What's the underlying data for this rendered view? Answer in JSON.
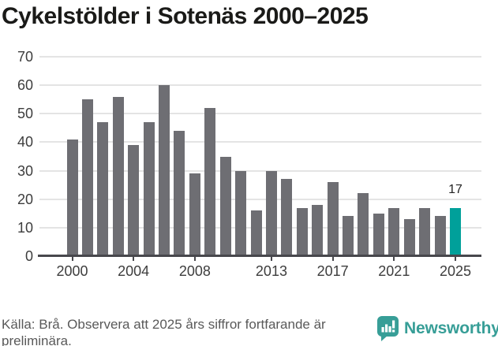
{
  "title": "Cykelstölder i Sotenäs 2000–2025",
  "footer": {
    "source_note": "Källa: Brå. Observera att 2025 års siffror fortfarande är preliminära.",
    "brand": "Newsworthy"
  },
  "colors": {
    "bar": "#6e6e73",
    "highlight": "#00a09a",
    "brand_teal": "#379e97",
    "grid": "#e4e4e4",
    "axis": "#47474c",
    "tick_text": "#3d3d3d",
    "annotation_text": "#232323"
  },
  "chart_data": {
    "type": "bar",
    "title": "Cykelstölder i Sotenäs 2000–2025",
    "categories": [
      2000,
      2001,
      2002,
      2003,
      2004,
      2005,
      2006,
      2007,
      2008,
      2009,
      2010,
      2011,
      2012,
      2013,
      2014,
      2015,
      2016,
      2017,
      2018,
      2019,
      2020,
      2021,
      2022,
      2023,
      2024,
      2025
    ],
    "values": [
      41,
      55,
      47,
      56,
      39,
      47,
      60,
      44,
      29,
      52,
      35,
      30,
      16,
      30,
      27,
      17,
      18,
      26,
      14,
      22,
      15,
      17,
      13,
      17,
      14,
      17
    ],
    "xlabel": "",
    "ylabel": "",
    "ylim": [
      0,
      70
    ],
    "yticks": [
      0,
      10,
      20,
      30,
      40,
      50,
      60,
      70
    ],
    "xticks": [
      2000,
      2004,
      2008,
      2013,
      2017,
      2021,
      2025
    ],
    "grid": true,
    "legend": false,
    "highlight_last_bar": true,
    "last_value_label": "17"
  }
}
